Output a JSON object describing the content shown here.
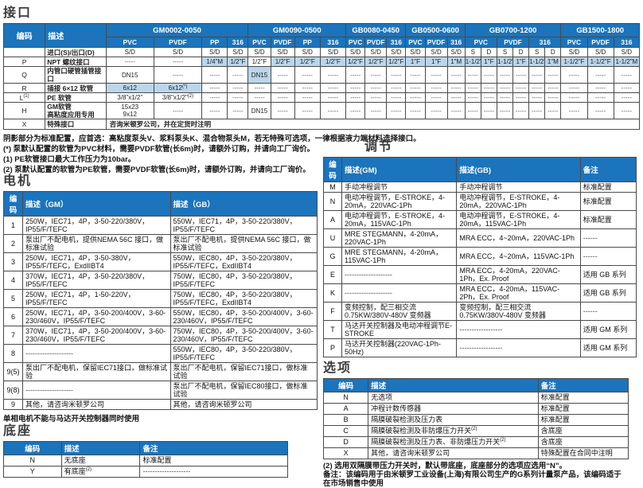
{
  "colors": {
    "header_blue": "#1b74bc",
    "shade_blue": "#bad6ec"
  },
  "interface": {
    "title": "接口",
    "code_header": "编码",
    "desc_header": "描述",
    "groups": [
      {
        "label": "GM0002-0050",
        "materials": [
          "PVC",
          "PVDF",
          "PP",
          "316"
        ],
        "split_sd": false
      },
      {
        "label": "GM0090-0500",
        "materials": [
          "PVC",
          "PVDF",
          "PP",
          "316"
        ],
        "split_sd": false
      },
      {
        "label": "GB0080-0450",
        "materials": [
          "PVC",
          "PVDF",
          "316"
        ],
        "split_sd": false
      },
      {
        "label": "GB0500-0600",
        "materials": [
          "PVC",
          "PVDF",
          "316"
        ],
        "split_sd": false
      },
      {
        "label": "GB0700-1200",
        "materials": [
          "PVC",
          "PVDF",
          "316"
        ],
        "split_sd": true
      },
      {
        "label": "GB1500-1800",
        "materials": [
          "PVC",
          "PVDF",
          "316"
        ],
        "split_sd": false
      }
    ],
    "sd_label": "进口(S)/出口(D)",
    "sd_cells": [
      "S/D",
      "S/D",
      "S/D",
      "S/D",
      "S/D",
      "S/D",
      "S/D",
      "S/D",
      "S/D",
      "S/D",
      "S/D",
      "S/D",
      "S/D",
      "S/D",
      "S",
      "D",
      "S",
      "D",
      "S",
      "D",
      "S/D",
      "S/D",
      "S/D"
    ],
    "rows": [
      {
        "code": "P",
        "desc": "NPT 螺纹接口",
        "cells": [
          "-----",
          "-----",
          "1/4\"M",
          "1/2\"F",
          "1/2\"F",
          "1/2\"F",
          "1/2\"F",
          "1/2\"F",
          "1/2\"F",
          "1/2\"F",
          "1/2\"F",
          "1\"F",
          "1\"F",
          "1\"M",
          "1-1/2\"F",
          "1\"F",
          "1-1/2\"F",
          "1\"F",
          "1-1/2\"M",
          "1\"M",
          "1-1/2\"F",
          "1-1/2\"F",
          "1-1/2\"M"
        ],
        "std": [
          2,
          3,
          5,
          6,
          7,
          8,
          9,
          10,
          11,
          12,
          13,
          14,
          15,
          16,
          17,
          18,
          19,
          20,
          21,
          22
        ]
      },
      {
        "code": "Q",
        "desc": "内管口硬管插管接口",
        "cells": [
          "DN15",
          "-----",
          "-----",
          "-----",
          "DN15",
          "-----",
          "-----",
          "-----",
          "-----",
          "-----",
          "-----",
          "-----",
          "-----",
          "-----",
          "-----",
          "-----",
          "-----",
          "-----",
          "-----",
          "-----",
          "-----",
          "-----",
          "-----"
        ],
        "std": [
          4
        ]
      },
      {
        "code": "R",
        "desc": "插接 6×12 软管",
        "cells": [
          "6x12",
          "6x12^(*)",
          "-----",
          "-----",
          "-----",
          "-----",
          "-----",
          "-----",
          "-----",
          "-----",
          "-----",
          "-----",
          "-----",
          "-----",
          "-----",
          "-----",
          "-----",
          "-----",
          "-----",
          "-----",
          "-----",
          "-----",
          "-----"
        ],
        "std": [
          0,
          1
        ]
      },
      {
        "code": "L^(1)",
        "desc": "PE 软管",
        "cells": [
          "3/8\"x1/2\"",
          "3/8\"x1/2\"^(2)",
          "-----",
          "-----",
          "-----",
          "-----",
          "-----",
          "-----",
          "-----",
          "-----",
          "-----",
          "-----",
          "-----",
          "-----",
          "-----",
          "-----",
          "-----",
          "-----",
          "-----",
          "-----",
          "-----",
          "-----",
          "-----"
        ],
        "std": []
      },
      {
        "code": "H",
        "desc": "GM软管\n高粘度应用专用",
        "cells": [
          "15x23\n9x12",
          "-----",
          "-----",
          "-----",
          "DN15",
          "-----",
          "-----",
          "-----",
          "-----",
          "-----",
          "-----",
          "-----",
          "-----",
          "-----",
          "-----",
          "-----",
          "-----",
          "-----",
          "-----",
          "-----",
          "-----",
          "-----",
          "-----"
        ],
        "std": []
      }
    ],
    "special": {
      "code": "X",
      "desc": "特殊接口",
      "note": "咨询米顿罗公司，并在定货时注明"
    },
    "notes": [
      "阴影部分为标准配置，应首选：高粘度泵头V、浆料泵头K、混合物泵头M，若无特殊可选项，一律根据液力端材料选择接口。",
      "(*) 泵默认配置的软管为PVC材料，需要PVDF软管(长6m)时，请额外订购，并请向工厂询价。",
      "(1) PE软管接口最大工作压力为10bar。",
      "(2) 泵默认配置的软管为PE软管，需要PVDF软管(长6m)时，请额外订购，并请向工厂询价。"
    ]
  },
  "motor": {
    "title": "电机",
    "headers": [
      "编码",
      "描述（GM）",
      "描述（GB）"
    ],
    "rows": [
      [
        "1",
        "250W，IEC71，4P，3-50-220/380V，IP55/F/TEFC",
        "550W，IEC71，4P，3-50-220/380V，IP55/F/TEFC"
      ],
      [
        "2",
        "泵出厂不配电机，提供NEMA 56C 接口，做标准试验",
        "泵出厂不配电机，提供NEMA 56C 接口，做标准试验"
      ],
      [
        "3",
        "250W，IEC71，4P，3-50-380V，IP55/F/TEFC，ExdIIBT4",
        "550W，IEC80，4P，3-50-220/380V，IP55/F/TEFC，ExdIIBT4"
      ],
      [
        "4",
        "370W，IEC71，4P，3-50-220/380V，IP55/F/TEFC",
        "750W，IEC80，4P，3-50-220/380V，IP55/F/TEFC"
      ],
      [
        "5",
        "250W，IEC71，4P，1-50-220V，IP55/F/TEFC",
        "750W，IEC80，4P，3-50-220/380V，IP55/F/TEFC，ExdIIBT4"
      ],
      [
        "6",
        "250W，IEC71，4P，3-50-200/400V，3-60-230/460V，IP55/F/TEFC",
        "550W，IEC80，4P，3-50-200/400V，3-60-230/460V，IP55/F/TEFC"
      ],
      [
        "7",
        "370W，IEC71，4P，3-50-200/400V，3-60-230/460V，IP55/F/TEFC",
        "750W，IEC80，4P，3-50-200/400V，3-60-230/460V，IP55/F/TEFC"
      ],
      [
        "8",
        "--------------------",
        "550W，IEC80，4P，3-50-220/380V，IP55/F/TEFC"
      ],
      [
        "9(5)",
        "泵出厂不配电机，保留IEC71接口，做标准试验",
        "泵出厂不配电机，保留IEC71接口，做标准试验"
      ],
      [
        "9(8)",
        "--------------------",
        "泵出厂不配电机，保留IEC80接口，做标准试验"
      ],
      [
        "9",
        "其他，请咨询米顿罗公司",
        "其他，请咨询米顿罗公司"
      ]
    ],
    "footnote": "单相电机不能与马达开关控制器同时使用"
  },
  "adjust": {
    "title": "调节",
    "headers": [
      "编码",
      "描述(GM)",
      "描述(GB)",
      "备注"
    ],
    "rows": [
      [
        "M",
        "手动冲程调节",
        "手动冲程调节",
        "标准配置"
      ],
      [
        "N",
        "电动冲程调节，E-STROKE，4-20mA，220VAC-1Ph",
        "电动冲程调节，E-STROKE，4-20mA，220VAC-1Ph",
        "标准配置"
      ],
      [
        "A",
        "电动冲程调节，E-STROKE，4-20mA，115VAC-1Ph",
        "电动冲程调节，E-STROKE，4-20mA，115VAC-1Ph",
        "标准配置"
      ],
      [
        "U",
        "MRE STEGMANN，4-20mA，220VAC-1Ph",
        "MRA ECC，4~20mA，220VAC-1Ph",
        "------"
      ],
      [
        "G",
        "MRE STEGMANN，4-20mA，115VAC-1Ph",
        "MRA ECC，4~20mA，115VAC-1Ph",
        "------"
      ],
      [
        "E",
        "--------------------",
        "MRA ECC，4-20mA，220VAC-1Ph，Ex. Proof",
        "适用 GB 系列"
      ],
      [
        "K",
        "--------------------",
        "MRA ECC，4-20mA，115VAC-2Ph，Ex. Proof",
        "适用 GB 系列"
      ],
      [
        "F",
        "变频控制，配三相交流 0.75KW/380V-480V 变频器",
        "变频控制，配三相交流 0.75KW/380V-480V 变频器",
        "------"
      ],
      [
        "T",
        "马达开关控制器及电动冲程调节E-STROKE",
        "------------------",
        "适用 GM 系列"
      ],
      [
        "P",
        "马达开关控制器(220VAC-1Ph-50Hz)",
        "------------------",
        "适用 GM 系列"
      ]
    ]
  },
  "options": {
    "title": "选项",
    "headers": [
      "编码",
      "描述",
      "备注"
    ],
    "rows": [
      [
        "N",
        "无选项",
        "标准配置"
      ],
      [
        "A",
        "冲程计数传感器",
        "标准配置"
      ],
      [
        "B",
        "隔膜破裂检测及压力表",
        "标准配置"
      ],
      [
        "C",
        "隔膜破裂检测及非防爆压力开关^(2)",
        "含底座"
      ],
      [
        "D",
        "隔膜破裂检测及压力表、非防爆压力开关^(2)",
        "含底座"
      ],
      [
        "X",
        "其他，请咨询米顿罗公司",
        "特殊配置在合同中注明"
      ]
    ],
    "notes": [
      "(2) 选用双隔膜带压力开关时，默认带底座，底座部分的选项应选用“N”。",
      "备注：该编码用于由米顿罗工业设备(上海)有限公司生产的G系列计量泵产品，该编码适于在市场销售中使用"
    ]
  },
  "base": {
    "title": "底座",
    "headers": [
      "编码",
      "描述",
      "备注"
    ],
    "rows": [
      [
        "N",
        "无底座",
        "标准配置"
      ],
      [
        "Y",
        "有底座^(2)",
        "--------------------"
      ]
    ]
  }
}
